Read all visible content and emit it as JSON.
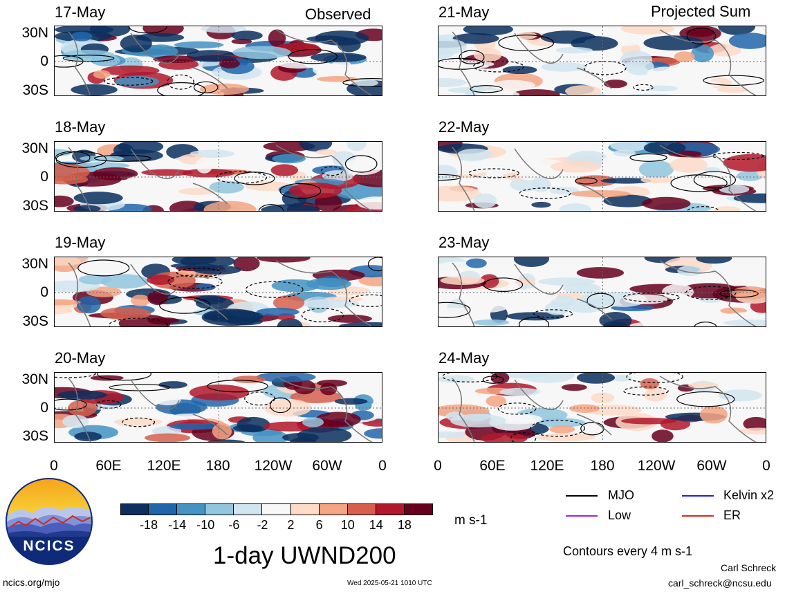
{
  "columns": {
    "left_title": "Observed",
    "right_title": "Projected Sum"
  },
  "panels": {
    "left": [
      "17-May",
      "18-May",
      "19-May",
      "20-May"
    ],
    "right": [
      "21-May",
      "22-May",
      "23-May",
      "24-May"
    ]
  },
  "lat_labels": [
    "30N",
    "0",
    "30S"
  ],
  "lon_labels": [
    "0",
    "60E",
    "120E",
    "180",
    "120W",
    "60W",
    "0"
  ],
  "colorbar": {
    "colors": [
      "#0b2f5e",
      "#2166ac",
      "#4393c3",
      "#92c5de",
      "#d1e5f0",
      "#f7f7f7",
      "#fddbc7",
      "#f4a582",
      "#d6604d",
      "#b2182b",
      "#67001f"
    ],
    "labels": [
      "-18",
      "-14",
      "-10",
      "-6",
      "-2",
      "2",
      "6",
      "10",
      "14",
      "18"
    ],
    "unit": "m s-1"
  },
  "legend": {
    "items": [
      {
        "label": "MJO",
        "color": "#000000"
      },
      {
        "label": "Kelvin x2",
        "color": "#1a1aff"
      },
      {
        "label": "Low",
        "color": "#a020f0"
      },
      {
        "label": "ER",
        "color": "#e0261a"
      }
    ],
    "contours": "Contours every 4 m s-1"
  },
  "title": "1-day UWND200",
  "logo_text": "NCICS",
  "footer": {
    "url": "ncics.org/mjo",
    "timestamp": "Wed 2025-05-21 1010 UTC",
    "author": "Carl Schreck",
    "email": "carl_schreck@ncsu.edu"
  }
}
